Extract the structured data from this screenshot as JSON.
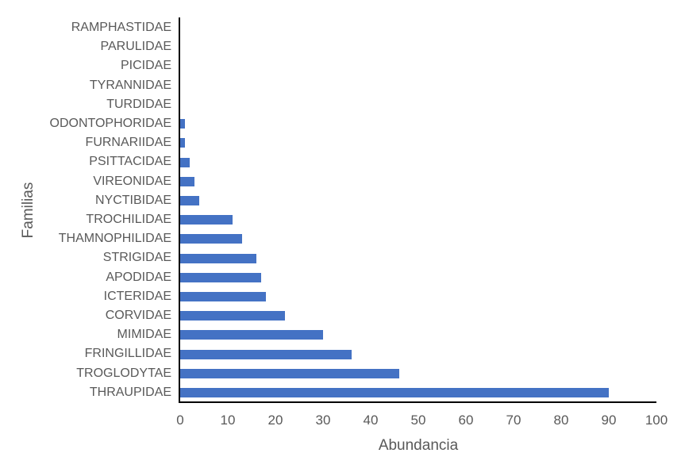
{
  "chart_data": {
    "type": "bar",
    "orientation": "horizontal",
    "title": "",
    "xlabel": "Abundancia",
    "ylabel": "Familias",
    "xlim": [
      0,
      100
    ],
    "x_ticks": [
      0,
      10,
      20,
      30,
      40,
      50,
      60,
      70,
      80,
      90,
      100
    ],
    "grid": false,
    "legend_position": "none",
    "category_order": "top_to_bottom",
    "categories": [
      "RAMPHASTIDAE",
      "PARULIDAE",
      "PICIDAE",
      "TYRANNIDAE",
      "TURDIDAE",
      "ODONTOPHORIDAE",
      "FURNARIIDAE",
      "PSITTACIDAE",
      "VIREONIDAE",
      "NYCTIBIDAE",
      "TROCHILIDAE",
      "THAMNOPHILIDAE",
      "STRIGIDAE",
      "APODIDAE",
      "ICTERIDAE",
      "CORVIDAE",
      "MIMIDAE",
      "FRINGILLIDAE",
      "TROGLODYTAE",
      "THRAUPIDAE"
    ],
    "values": [
      0,
      0,
      0,
      0,
      0,
      1,
      1,
      2,
      3,
      4,
      11,
      13,
      16,
      17,
      18,
      22,
      30,
      36,
      46,
      90
    ],
    "colors": {
      "bar": "#4472C4",
      "axis_line": "#000000",
      "text": "#595959",
      "background": "#FFFFFF"
    }
  }
}
